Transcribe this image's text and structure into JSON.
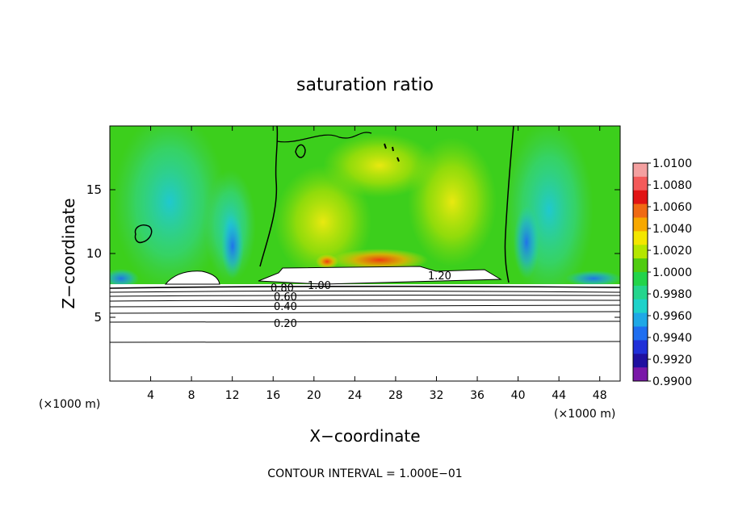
{
  "chart_data": {
    "type": "heatmap",
    "title": "saturation ratio",
    "xlabel": "X−coordinate",
    "ylabel": "Z−coordinate",
    "x_unit_left": "(×1000 m)",
    "x_unit_right": "(×1000 m)",
    "footer": "CONTOUR INTERVAL = 1.000E−01",
    "xlim": [
      0,
      50
    ],
    "ylim": [
      0,
      20
    ],
    "x_ticks": [
      4,
      8,
      12,
      16,
      20,
      24,
      28,
      32,
      36,
      40,
      44,
      48
    ],
    "y_ticks": [
      5,
      10,
      15
    ],
    "colorbar": {
      "min": 0.99,
      "max": 1.01,
      "tick_labels": [
        "1.0100",
        "1.0080",
        "1.0060",
        "1.0040",
        "1.0020",
        "1.0000",
        "0.9980",
        "0.9960",
        "0.9940",
        "0.9920",
        "0.9900"
      ],
      "colors": [
        "#f4a0a0",
        "#f45a5a",
        "#e11414",
        "#f06a14",
        "#f7a800",
        "#f3e600",
        "#b4e600",
        "#50cc10",
        "#23d44a",
        "#25d58d",
        "#1ed2ca",
        "#1ea8e6",
        "#1e6ef0",
        "#2030d8",
        "#2010a0",
        "#7a18a8"
      ]
    },
    "contour_labels": [
      {
        "text": "1.00",
        "x": 20.5,
        "y": 8.0
      },
      {
        "text": "1.20",
        "x": 32.5,
        "y": 8.7
      },
      {
        "text": "0.80",
        "x": 17.0,
        "y": 7.5
      },
      {
        "text": "0.60",
        "x": 17.0,
        "y": 6.9
      },
      {
        "text": "0.40",
        "x": 17.0,
        "y": 6.0
      },
      {
        "text": "0.20",
        "x": 17.5,
        "y": 4.6
      }
    ]
  }
}
